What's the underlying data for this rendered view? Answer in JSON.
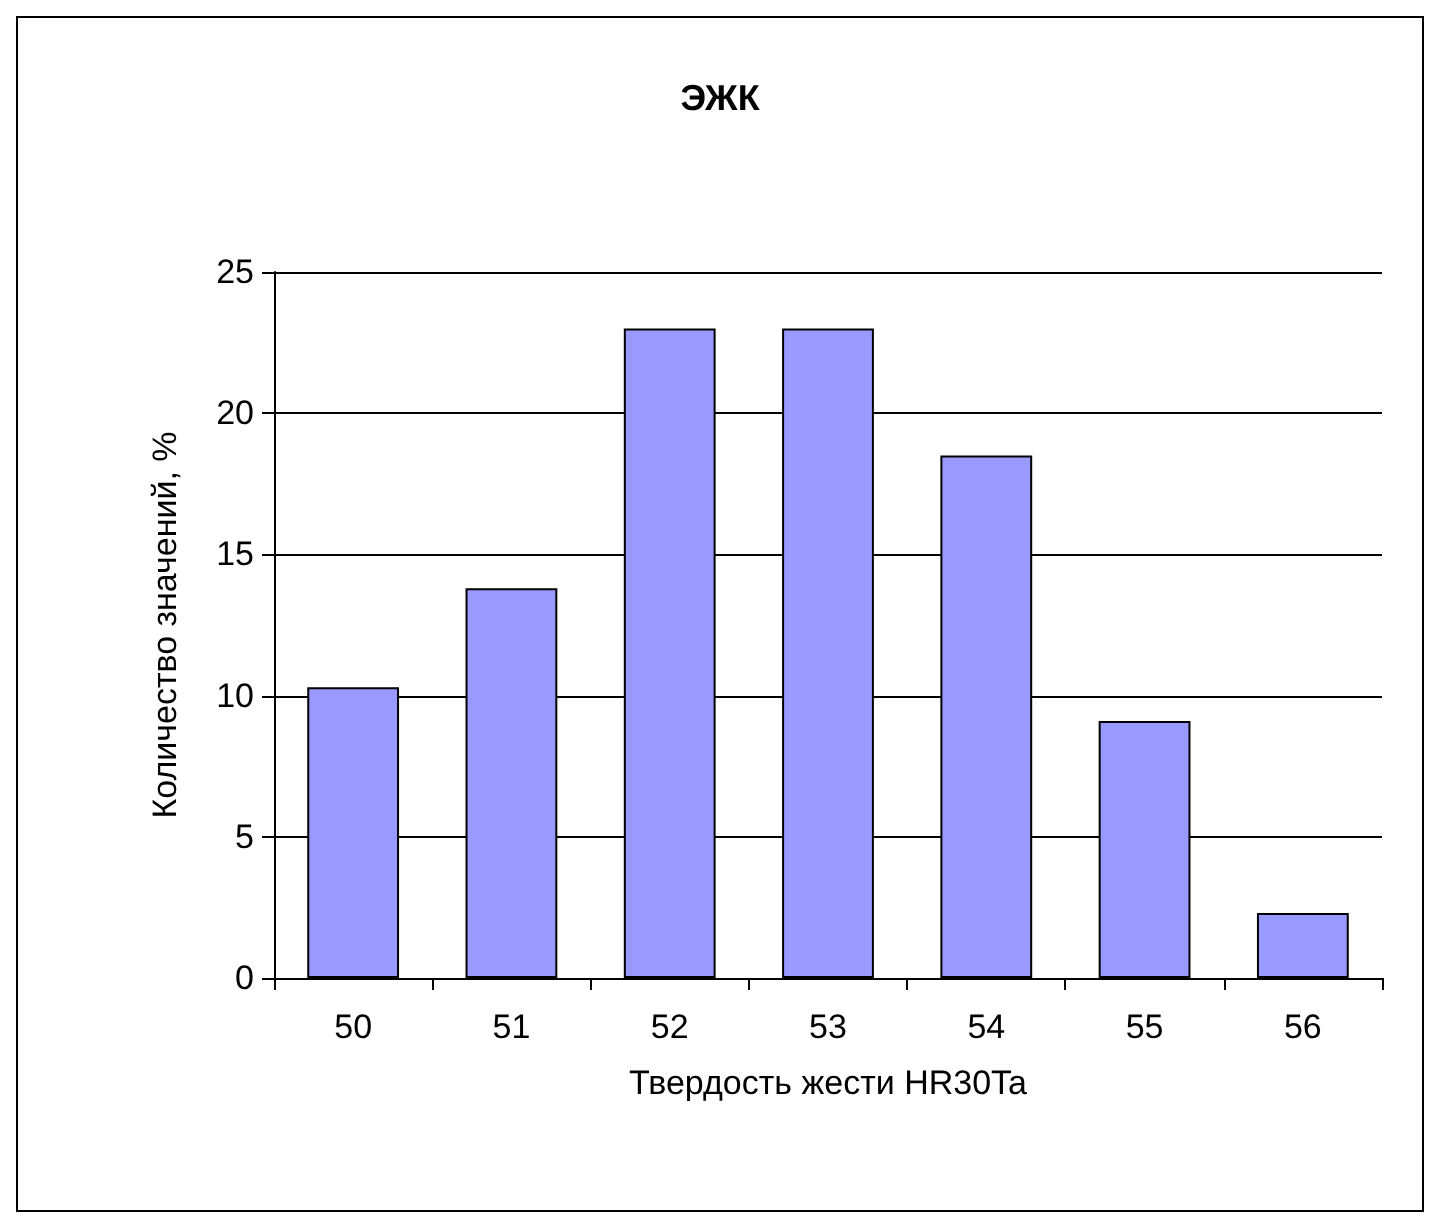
{
  "chart_data": {
    "type": "bar",
    "title": "ЭЖК",
    "xlabel": "Твердость жести HR30Ta",
    "ylabel": "Количество значений, %",
    "categories": [
      "50",
      "51",
      "52",
      "53",
      "54",
      "55",
      "56"
    ],
    "values": [
      10.3,
      13.8,
      23,
      23,
      18.5,
      9.1,
      2.3
    ],
    "color": "#9999ff",
    "ylim": [
      0,
      25
    ],
    "yticks": [
      0,
      5,
      10,
      15,
      20,
      25
    ],
    "grid": "y"
  }
}
